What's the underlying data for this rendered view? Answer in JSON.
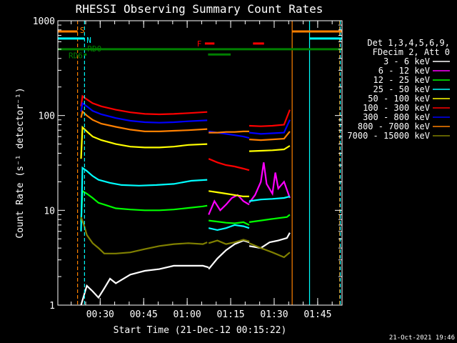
{
  "chart_data": {
    "type": "line",
    "title": "RHESSI Observing Summary Count Rates",
    "xlabel": "Start Time (21-Dec-12 00:15:22)",
    "ylabel": "Count Rate (s⁻¹ detector⁻¹)",
    "x_unit": "minutes since 00:15:22",
    "xlim": [
      0,
      98
    ],
    "ylim": [
      1,
      1000
    ],
    "y_scale": "log",
    "x_ticks": [
      {
        "x": 14.6,
        "label": "00:30"
      },
      {
        "x": 29.6,
        "label": "00:45"
      },
      {
        "x": 44.6,
        "label": "01:00"
      },
      {
        "x": 59.6,
        "label": "01:15"
      },
      {
        "x": 74.6,
        "label": "01:30"
      },
      {
        "x": 89.6,
        "label": "01:45"
      }
    ],
    "y_ticks": [
      {
        "y": 1,
        "label": "1"
      },
      {
        "y": 10,
        "label": "10"
      },
      {
        "y": 100,
        "label": "100"
      },
      {
        "y": 1000,
        "label": "1000"
      }
    ],
    "legend_header": [
      "Det 1,3,4,5,6,9,",
      "FDecim 2, Att 0"
    ],
    "legend_position": "right",
    "series": [
      {
        "name": "3 - 6 keV",
        "color": "#ffffff",
        "segments": [
          [
            [
              8,
              1.0
            ],
            [
              10,
              1.6
            ],
            [
              12,
              1.4
            ],
            [
              14,
              1.2
            ],
            [
              16,
              1.5
            ],
            [
              18,
              1.9
            ],
            [
              20,
              1.7
            ],
            [
              25,
              2.1
            ],
            [
              30,
              2.3
            ],
            [
              35,
              2.4
            ],
            [
              40,
              2.6
            ],
            [
              45,
              2.6
            ],
            [
              50,
              2.6
            ],
            [
              52,
              2.5
            ]
          ],
          [
            [
              52,
              2.4
            ],
            [
              55,
              3.1
            ],
            [
              58,
              3.8
            ],
            [
              61,
              4.4
            ],
            [
              64,
              4.8
            ],
            [
              66,
              4.6
            ]
          ],
          [
            [
              66,
              4.2
            ],
            [
              70,
              4.0
            ],
            [
              73,
              4.6
            ],
            [
              76,
              4.8
            ],
            [
              79,
              5.1
            ],
            [
              80,
              5.8
            ]
          ]
        ]
      },
      {
        "name": "6 - 12 keV",
        "color": "#ff00ff",
        "segments": [
          [
            [
              52,
              9.0
            ],
            [
              54,
              12.5
            ],
            [
              56,
              10.0
            ],
            [
              58,
              11.5
            ],
            [
              60,
              13.5
            ],
            [
              62,
              14.5
            ],
            [
              64,
              12.5
            ],
            [
              66,
              11.5
            ]
          ],
          [
            [
              66,
              12.0
            ],
            [
              68,
              14.5
            ],
            [
              70,
              20.0
            ],
            [
              71,
              32.0
            ],
            [
              72,
              19.0
            ],
            [
              74,
              15.0
            ],
            [
              75,
              25.0
            ],
            [
              76,
              17.0
            ],
            [
              78,
              20.0
            ],
            [
              80,
              13.5
            ]
          ]
        ]
      },
      {
        "name": "12 - 25 keV",
        "color": "#00ff00",
        "segments": [
          [
            [
              8,
              7.5
            ],
            [
              8.5,
              16.0
            ],
            [
              10,
              15.0
            ],
            [
              12,
              13.5
            ],
            [
              14,
              12.0
            ],
            [
              16,
              11.5
            ],
            [
              20,
              10.5
            ],
            [
              25,
              10.2
            ],
            [
              30,
              10.0
            ],
            [
              35,
              10.0
            ],
            [
              40,
              10.2
            ],
            [
              45,
              10.6
            ],
            [
              50,
              11.0
            ],
            [
              51.5,
              11.2
            ]
          ],
          [
            [
              52,
              7.8
            ],
            [
              55,
              7.6
            ],
            [
              58,
              7.4
            ],
            [
              61,
              7.3
            ],
            [
              64,
              7.5
            ],
            [
              66,
              7.0
            ]
          ],
          [
            [
              66,
              7.5
            ],
            [
              70,
              7.8
            ],
            [
              75,
              8.2
            ],
            [
              79,
              8.5
            ],
            [
              80,
              9.0
            ]
          ]
        ]
      },
      {
        "name": "25 - 50 keV",
        "color": "#00ffff",
        "segments": [
          [
            [
              8,
              6.0
            ],
            [
              8.5,
              28.0
            ],
            [
              10,
              26.0
            ],
            [
              12,
              23.0
            ],
            [
              14,
              21.0
            ],
            [
              18,
              19.5
            ],
            [
              22,
              18.5
            ],
            [
              28,
              18.2
            ],
            [
              34,
              18.5
            ],
            [
              40,
              19.0
            ],
            [
              46,
              20.5
            ],
            [
              51.5,
              21.0
            ]
          ],
          [
            [
              52,
              6.5
            ],
            [
              55,
              6.2
            ],
            [
              58,
              6.5
            ],
            [
              61,
              7.0
            ],
            [
              64,
              6.8
            ],
            [
              66,
              6.5
            ]
          ],
          [
            [
              66,
              12.5
            ],
            [
              70,
              13.0
            ],
            [
              74,
              13.2
            ],
            [
              78,
              13.5
            ],
            [
              80,
              14.0
            ]
          ]
        ]
      },
      {
        "name": "50 - 100 keV",
        "color": "#ffff00",
        "segments": [
          [
            [
              8,
              35.0
            ],
            [
              8.5,
              75.0
            ],
            [
              10,
              68.0
            ],
            [
              12,
              60.0
            ],
            [
              15,
              55.0
            ],
            [
              20,
              50.0
            ],
            [
              25,
              47.0
            ],
            [
              30,
              46.0
            ],
            [
              35,
              46.0
            ],
            [
              40,
              47.0
            ],
            [
              45,
              49.0
            ],
            [
              51.5,
              50.0
            ]
          ],
          [
            [
              52,
              16.0
            ],
            [
              55,
              15.5
            ],
            [
              58,
              15.0
            ],
            [
              61,
              14.5
            ],
            [
              64,
              14.0
            ],
            [
              66,
              14.0
            ]
          ],
          [
            [
              66,
              42.0
            ],
            [
              70,
              42.5
            ],
            [
              74,
              43.0
            ],
            [
              78,
              44.0
            ],
            [
              80,
              48.0
            ]
          ]
        ]
      },
      {
        "name": "100 - 300 keV",
        "color": "#ff0000",
        "segments": [
          [
            [
              8,
              125.0
            ],
            [
              8.5,
              160.0
            ],
            [
              10,
              148.0
            ],
            [
              12,
              135.0
            ],
            [
              15,
              125.0
            ],
            [
              20,
              115.0
            ],
            [
              25,
              108.0
            ],
            [
              30,
              104.0
            ],
            [
              35,
              103.0
            ],
            [
              40,
              104.0
            ],
            [
              45,
              106.0
            ],
            [
              51.5,
              109.0
            ]
          ],
          [
            [
              52,
              35.0
            ],
            [
              55,
              32.0
            ],
            [
              58,
              30.0
            ],
            [
              61,
              29.0
            ],
            [
              64,
              27.5
            ],
            [
              66,
              26.5
            ]
          ],
          [
            [
              66,
              78.0
            ],
            [
              70,
              77.0
            ],
            [
              74,
              78.0
            ],
            [
              78,
              80.0
            ],
            [
              80,
              115.0
            ]
          ]
        ]
      },
      {
        "name": "300 - 800 keV",
        "color": "#0000ff",
        "segments": [
          [
            [
              8,
              110.0
            ],
            [
              8.5,
              135.0
            ],
            [
              10,
              125.0
            ],
            [
              12,
              112.0
            ],
            [
              15,
              103.0
            ],
            [
              20,
              94.0
            ],
            [
              25,
              88.0
            ],
            [
              30,
              85.0
            ],
            [
              35,
              84.0
            ],
            [
              40,
              85.0
            ],
            [
              45,
              87.0
            ],
            [
              51.5,
              89.0
            ]
          ],
          [
            [
              52,
              68.0
            ],
            [
              55,
              66.0
            ],
            [
              58,
              64.0
            ],
            [
              61,
              62.0
            ],
            [
              64,
              60.0
            ],
            [
              66,
              58.0
            ]
          ],
          [
            [
              66,
              66.0
            ],
            [
              70,
              64.0
            ],
            [
              74,
              65.0
            ],
            [
              78,
              66.0
            ],
            [
              80,
              90.0
            ]
          ]
        ]
      },
      {
        "name": "800 - 7000 keV",
        "color": "#ff8000",
        "segments": [
          [
            [
              8,
              95.0
            ],
            [
              8.5,
              110.0
            ],
            [
              10,
              100.0
            ],
            [
              12,
              90.0
            ],
            [
              15,
              82.0
            ],
            [
              20,
              76.0
            ],
            [
              25,
              71.0
            ],
            [
              30,
              68.0
            ],
            [
              35,
              68.0
            ],
            [
              40,
              69.0
            ],
            [
              45,
              70.0
            ],
            [
              51.5,
              72.0
            ]
          ],
          [
            [
              52,
              66.0
            ],
            [
              55,
              66.0
            ],
            [
              58,
              67.0
            ],
            [
              61,
              67.0
            ],
            [
              64,
              68.0
            ],
            [
              66,
              68.0
            ]
          ],
          [
            [
              66,
              56.0
            ],
            [
              70,
              55.0
            ],
            [
              74,
              56.0
            ],
            [
              78,
              57.0
            ],
            [
              80,
              68.0
            ]
          ]
        ]
      },
      {
        "name": "7000 - 15000 keV",
        "color": "#808000",
        "segments": [
          [
            [
              8,
              8.5
            ],
            [
              9,
              7.0
            ],
            [
              10,
              5.5
            ],
            [
              12,
              4.5
            ],
            [
              14,
              4.0
            ],
            [
              16,
              3.5
            ],
            [
              20,
              3.5
            ],
            [
              25,
              3.6
            ],
            [
              30,
              3.9
            ],
            [
              35,
              4.2
            ],
            [
              40,
              4.4
            ],
            [
              45,
              4.5
            ],
            [
              50,
              4.4
            ],
            [
              51.5,
              4.6
            ]
          ],
          [
            [
              52,
              4.5
            ],
            [
              55,
              4.8
            ],
            [
              58,
              4.4
            ],
            [
              61,
              4.6
            ],
            [
              64,
              4.9
            ],
            [
              66,
              4.7
            ]
          ],
          [
            [
              66,
              4.5
            ],
            [
              70,
              4.0
            ],
            [
              74,
              3.6
            ],
            [
              78,
              3.2
            ],
            [
              80,
              3.6
            ]
          ]
        ]
      }
    ],
    "vlines": [
      {
        "x": 6.8,
        "color": "#ff8000",
        "style": "dashed"
      },
      {
        "x": 9.2,
        "color": "#00ffff",
        "style": "dashed"
      },
      {
        "x": 80.8,
        "color": "#ff8000",
        "style": "solid"
      },
      {
        "x": 86.8,
        "color": "#00ffff",
        "style": "solid"
      },
      {
        "x": 97.2,
        "color": "#ff8000",
        "style": "dashed"
      },
      {
        "x": 97.4,
        "color": "#00ffff",
        "style": "dashed"
      }
    ],
    "flag_bars": [
      {
        "label": "S",
        "color": "#ff8000",
        "y": 770,
        "segments": [
          [
            0,
            6.8
          ],
          [
            80.8,
            98
          ]
        ]
      },
      {
        "label": "N",
        "color": "#00ffff",
        "y": 650,
        "segments": [
          [
            0,
            9.2
          ],
          [
            86.8,
            98
          ]
        ]
      },
      {
        "label": "RD0",
        "color": "#008000",
        "y": 500,
        "segments": [
          [
            0,
            98
          ]
        ]
      },
      {
        "label": "RD6",
        "color": "#008000",
        "y": 440,
        "segments": [
          [
            9.0,
            9.9
          ],
          [
            51.8,
            59.6
          ]
        ]
      },
      {
        "label": "F",
        "color": "#ff0000",
        "y": 575,
        "segments": [
          [
            50.7,
            54.0
          ],
          [
            67.3,
            71.1
          ]
        ]
      }
    ]
  },
  "footer": {
    "timestamp": "21-Oct-2021 19:46"
  }
}
